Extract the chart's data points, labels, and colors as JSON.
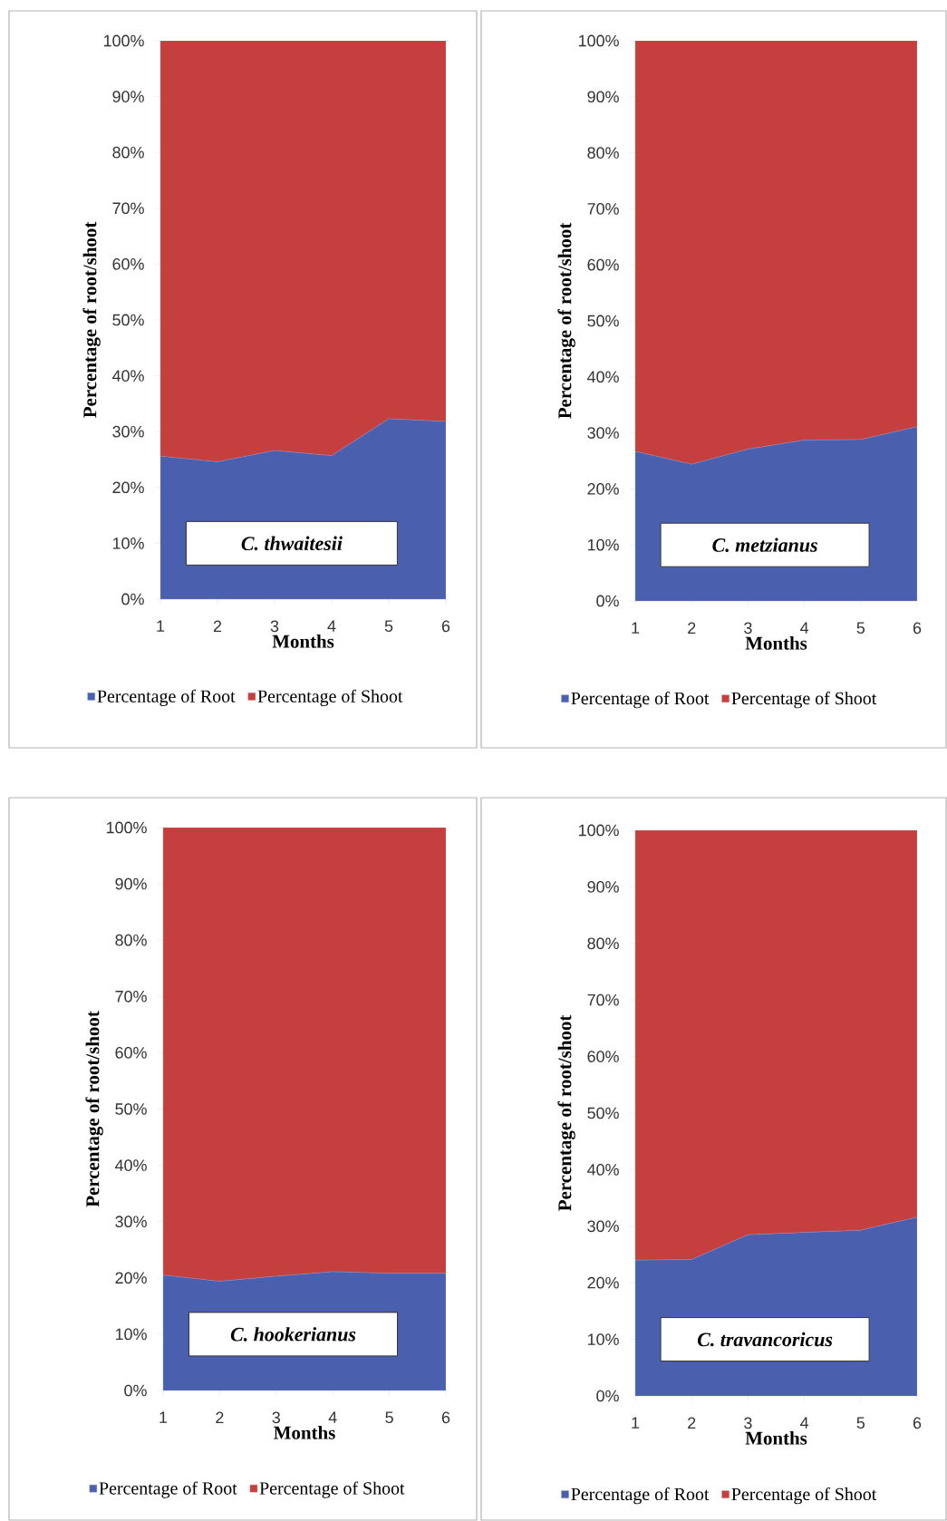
{
  "chart_data": [
    {
      "type": "area",
      "stacked": true,
      "x": [
        1,
        2,
        3,
        4,
        5,
        6
      ],
      "xlim": [
        1,
        6
      ],
      "xticks": [
        1,
        2,
        3,
        4,
        5,
        6
      ],
      "ylim": [
        0,
        100
      ],
      "yticks": [
        {
          "value": 0,
          "label": "0%"
        },
        {
          "value": 10,
          "label": "10%"
        },
        {
          "value": 20,
          "label": "20%"
        },
        {
          "value": 30,
          "label": "30%"
        },
        {
          "value": 40,
          "label": "40%"
        },
        {
          "value": 50,
          "label": "50%"
        },
        {
          "value": 60,
          "label": "60%"
        },
        {
          "value": 70,
          "label": "70%"
        },
        {
          "value": 80,
          "label": "80%"
        },
        {
          "value": 90,
          "label": "90%"
        },
        {
          "value": 100,
          "label": "100%"
        }
      ],
      "xlabel": "Months",
      "ylabel": "Percentage of root/shoot",
      "legend": "bottom",
      "annotations": [
        "C. thwaitesii"
      ],
      "series": [
        {
          "name": "Percentage of Root",
          "color": "#4a5fae",
          "values": [
            25.6,
            24.6,
            26.6,
            25.7,
            32.3,
            31.8
          ]
        },
        {
          "name": "Percentage of Shoot",
          "color": "#c63f3f",
          "values": [
            74.4,
            75.4,
            73.4,
            74.3,
            67.7,
            68.2
          ]
        }
      ]
    },
    {
      "type": "area",
      "stacked": true,
      "x": [
        1,
        2,
        3,
        4,
        5,
        6
      ],
      "xlim": [
        1,
        6
      ],
      "xticks": [
        1,
        2,
        3,
        4,
        5,
        6
      ],
      "ylim": [
        0,
        100
      ],
      "yticks": [
        {
          "value": 0,
          "label": "0%"
        },
        {
          "value": 10,
          "label": "10%"
        },
        {
          "value": 20,
          "label": "20%"
        },
        {
          "value": 30,
          "label": "30%"
        },
        {
          "value": 40,
          "label": "40%"
        },
        {
          "value": 50,
          "label": "50%"
        },
        {
          "value": 60,
          "label": "60%"
        },
        {
          "value": 70,
          "label": "70%"
        },
        {
          "value": 80,
          "label": "80%"
        },
        {
          "value": 90,
          "label": "90%"
        },
        {
          "value": 100,
          "label": "100%"
        }
      ],
      "xlabel": "Months",
      "ylabel": "Percentage of root/shoot",
      "legend": "bottom",
      "annotations": [
        "C. metzianus"
      ],
      "series": [
        {
          "name": "Percentage of Root",
          "color": "#4a5fae",
          "values": [
            26.7,
            24.4,
            27.1,
            28.7,
            28.8,
            31.1
          ]
        },
        {
          "name": "Percentage of Shoot",
          "color": "#c63f3f",
          "values": [
            73.3,
            75.6,
            72.9,
            71.3,
            71.2,
            68.9
          ]
        }
      ]
    },
    {
      "type": "area",
      "stacked": true,
      "x": [
        1,
        2,
        3,
        4,
        5,
        6
      ],
      "xlim": [
        1,
        6
      ],
      "xticks": [
        1,
        2,
        3,
        4,
        5,
        6
      ],
      "ylim": [
        0,
        100
      ],
      "yticks": [
        {
          "value": 0,
          "label": "0%"
        },
        {
          "value": 10,
          "label": "10%"
        },
        {
          "value": 20,
          "label": "20%"
        },
        {
          "value": 30,
          "label": "30%"
        },
        {
          "value": 40,
          "label": "40%"
        },
        {
          "value": 50,
          "label": "50%"
        },
        {
          "value": 60,
          "label": "60%"
        },
        {
          "value": 70,
          "label": "70%"
        },
        {
          "value": 80,
          "label": "80%"
        },
        {
          "value": 90,
          "label": "90%"
        },
        {
          "value": 100,
          "label": "100%"
        }
      ],
      "xlabel": "Months",
      "ylabel": "Percentage of root/shoot",
      "legend": "bottom",
      "annotations": [
        "C. hookerianus"
      ],
      "series": [
        {
          "name": "Percentage of Root",
          "color": "#4a5fae",
          "values": [
            20.5,
            19.4,
            20.3,
            21.1,
            20.8,
            20.8
          ]
        },
        {
          "name": "Percentage of Shoot",
          "color": "#c63f3f",
          "values": [
            79.5,
            80.6,
            79.7,
            78.9,
            79.2,
            79.2
          ]
        }
      ]
    },
    {
      "type": "area",
      "stacked": true,
      "x": [
        1,
        2,
        3,
        4,
        5,
        6
      ],
      "xlim": [
        1,
        6
      ],
      "xticks": [
        1,
        2,
        3,
        4,
        5,
        6
      ],
      "ylim": [
        0,
        100
      ],
      "yticks": [
        {
          "value": 0,
          "label": "0%"
        },
        {
          "value": 10,
          "label": "10%"
        },
        {
          "value": 20,
          "label": "20%"
        },
        {
          "value": 30,
          "label": "30%"
        },
        {
          "value": 40,
          "label": "40%"
        },
        {
          "value": 50,
          "label": "50%"
        },
        {
          "value": 60,
          "label": "60%"
        },
        {
          "value": 70,
          "label": "70%"
        },
        {
          "value": 80,
          "label": "80%"
        },
        {
          "value": 90,
          "label": "90%"
        },
        {
          "value": 100,
          "label": "100%"
        }
      ],
      "xlabel": "Months",
      "ylabel": "Percentage of root/shoot",
      "legend": "bottom",
      "annotations": [
        "C. travancoricus"
      ],
      "series": [
        {
          "name": "Percentage of Root",
          "color": "#4a5fae",
          "values": [
            24.0,
            24.1,
            28.5,
            28.9,
            29.3,
            31.6
          ]
        },
        {
          "name": "Percentage of Shoot",
          "color": "#c63f3f",
          "values": [
            76.0,
            75.9,
            71.5,
            71.1,
            70.7,
            68.4
          ]
        }
      ]
    }
  ]
}
